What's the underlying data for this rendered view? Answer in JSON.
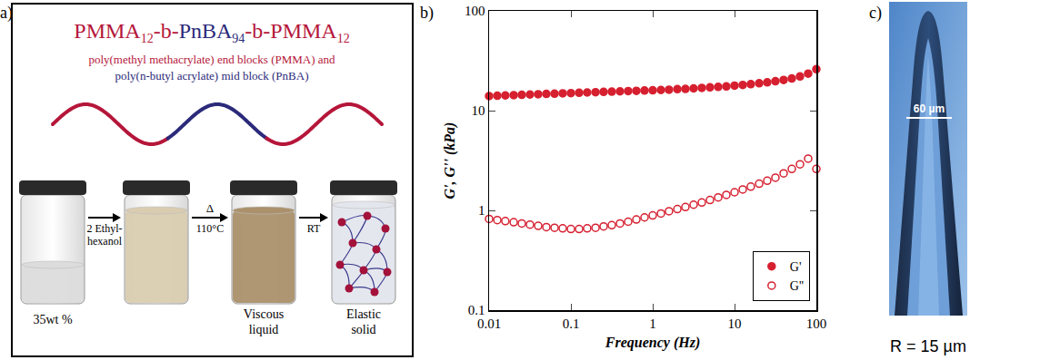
{
  "panel_a": {
    "label": "a)",
    "title": [
      {
        "text": "PMMA",
        "sub": "12",
        "color": "#b5163a"
      },
      {
        "text": "-b-",
        "color": "#b5163a"
      },
      {
        "text": "PnBA",
        "sub": "94",
        "color": "#2b2a7a"
      },
      {
        "text": "-b-",
        "color": "#b5163a"
      },
      {
        "text": "PMMA",
        "sub": "12",
        "color": "#b5163a"
      }
    ],
    "subtitle": [
      {
        "text": "poly(methyl methacrylate) end blocks (PMMA) and",
        "color": "#b5163a"
      },
      {
        "text": "poly(n-butyl acrylate) mid block (PnBA)",
        "color": "#2b2a7a"
      }
    ],
    "vial_labels": [
      [
        "35wt %"
      ],
      null,
      [
        "Viscous",
        "liquid"
      ],
      [
        "Elastic",
        "solid"
      ]
    ],
    "arrows": [
      {
        "above": null,
        "below": [
          "2 Ethyl-",
          "hexanol"
        ]
      },
      {
        "above": [
          "Δ"
        ],
        "below": [
          "110°C"
        ]
      },
      {
        "above": null,
        "below": [
          "RT"
        ]
      }
    ]
  },
  "chart_data": {
    "type": "scatter",
    "panel_label": "b)",
    "xlabel": "Frequency (Hz)",
    "ylabel": "G', G'' (kPa)",
    "log": true,
    "grid": false,
    "legend": "lower right",
    "xlim": [
      0.01,
      100
    ],
    "ylim": [
      0.1,
      100
    ],
    "xticks": [
      0.01,
      0.1,
      1,
      10,
      100
    ],
    "yticks": [
      0.1,
      1,
      10,
      100
    ],
    "x": [
      0.01,
      0.0126,
      0.0158,
      0.02,
      0.0251,
      0.0316,
      0.0398,
      0.0501,
      0.0631,
      0.0794,
      0.1,
      0.126,
      0.158,
      0.2,
      0.251,
      0.316,
      0.398,
      0.501,
      0.631,
      0.794,
      1,
      1.26,
      1.58,
      2,
      2.51,
      3.16,
      3.98,
      5.01,
      6.31,
      7.94,
      10,
      12.6,
      15.8,
      20,
      25.1,
      31.6,
      39.8,
      50.1,
      63.1,
      79.4,
      100
    ],
    "series": [
      {
        "name": "G'",
        "color": "#d62030",
        "marker": "circle",
        "values": [
          14.0,
          14.1,
          14.2,
          14.3,
          14.4,
          14.5,
          14.6,
          14.7,
          14.8,
          14.9,
          15.0,
          15.1,
          15.2,
          15.3,
          15.4,
          15.5,
          15.6,
          15.7,
          15.8,
          15.9,
          16.0,
          16.1,
          16.2,
          16.4,
          16.5,
          16.7,
          16.9,
          17.1,
          17.3,
          17.5,
          17.8,
          18.1,
          18.4,
          18.8,
          19.2,
          19.7,
          20.3,
          21.0,
          22.0,
          23.5,
          26.0
        ]
      },
      {
        "name": "G''",
        "color": "#d62030",
        "marker": "circle-open",
        "values": [
          0.82,
          0.8,
          0.78,
          0.76,
          0.74,
          0.72,
          0.7,
          0.68,
          0.67,
          0.66,
          0.65,
          0.65,
          0.66,
          0.67,
          0.69,
          0.71,
          0.74,
          0.77,
          0.81,
          0.85,
          0.89,
          0.93,
          0.98,
          1.03,
          1.08,
          1.14,
          1.2,
          1.27,
          1.35,
          1.43,
          1.52,
          1.62,
          1.73,
          1.85,
          1.98,
          2.13,
          2.35,
          2.6,
          2.9,
          3.3,
          2.6
        ]
      }
    ]
  },
  "panel_c": {
    "label": "c)",
    "scale_text": "60 µm",
    "caption": "R = 15 µm"
  }
}
